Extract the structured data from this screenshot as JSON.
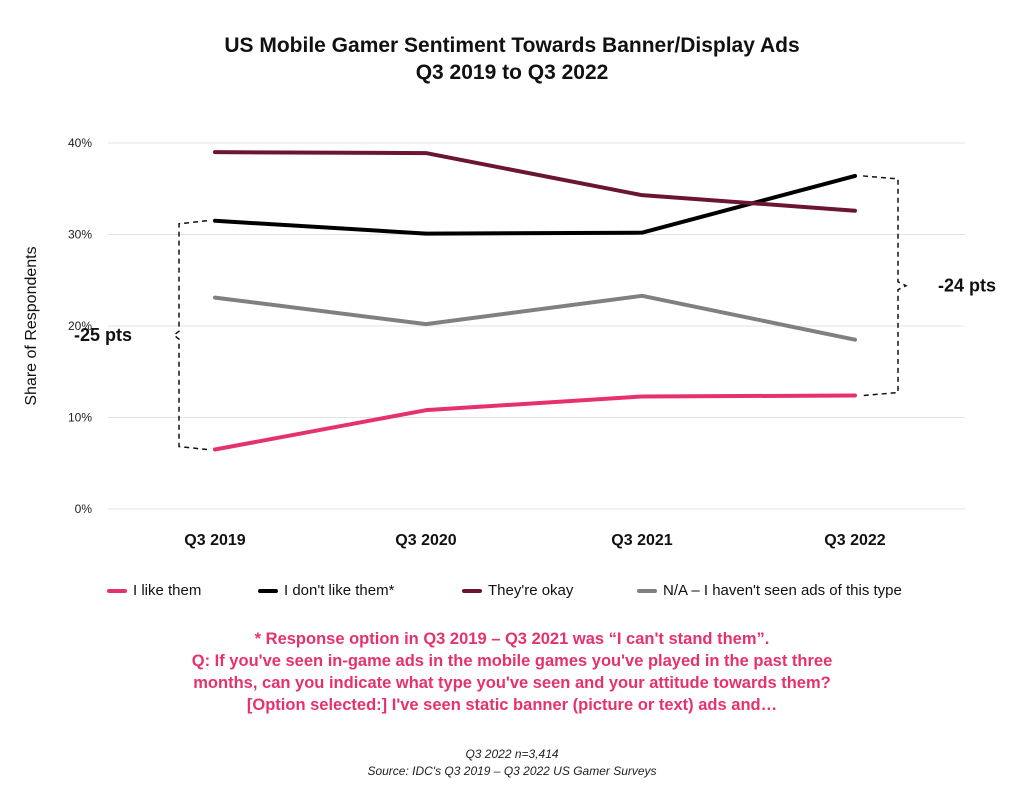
{
  "chart_data": {
    "type": "line",
    "title": "US Mobile Gamer Sentiment Towards Banner/Display Ads",
    "subtitle": "Q3 2019 to Q3 2022",
    "xlabel": "",
    "ylabel": "Share of Respondents",
    "categories": [
      "Q3 2019",
      "Q3 2020",
      "Q3 2021",
      "Q3 2022"
    ],
    "ylim": [
      0,
      40
    ],
    "yticks": [
      "0%",
      "10%",
      "20%",
      "30%",
      "40%"
    ],
    "grid": true,
    "legend_position": "bottom",
    "series": [
      {
        "name": "I like them",
        "color": "#e6326c",
        "values": [
          6.5,
          10.8,
          12.3,
          12.4
        ]
      },
      {
        "name": "I don't like them*",
        "color": "#000000",
        "values": [
          31.5,
          30.1,
          30.2,
          36.4
        ]
      },
      {
        "name": "They're okay",
        "color": "#6b1535",
        "values": [
          39.0,
          38.9,
          34.3,
          32.6
        ]
      },
      {
        "name": "N/A – I haven't seen ads of this type",
        "color": "#808080",
        "values": [
          23.1,
          20.2,
          23.3,
          18.5
        ]
      }
    ],
    "annotations": [
      {
        "text": "-25 pts",
        "category_index": 0,
        "from": 6.5,
        "to": 31.5,
        "side": "left"
      },
      {
        "text": "-24 pts",
        "category_index": 3,
        "from": 12.4,
        "to": 36.4,
        "side": "right"
      }
    ]
  },
  "note": {
    "line1": "* Response option in Q3 2019 – Q3 2021 was “I can't stand them”.",
    "line2": "Q: If you've seen in-game ads in the mobile games you've played in the past three",
    "line3": "months, can you indicate what type you've seen and your attitude towards them?",
    "line4": "[Option selected:] I've seen static banner (picture or text) ads and…"
  },
  "footer": {
    "sample": "Q3 2022 n=3,414",
    "source": "Source: IDC's Q3 2019 – Q3 2022 US Gamer Surveys"
  }
}
